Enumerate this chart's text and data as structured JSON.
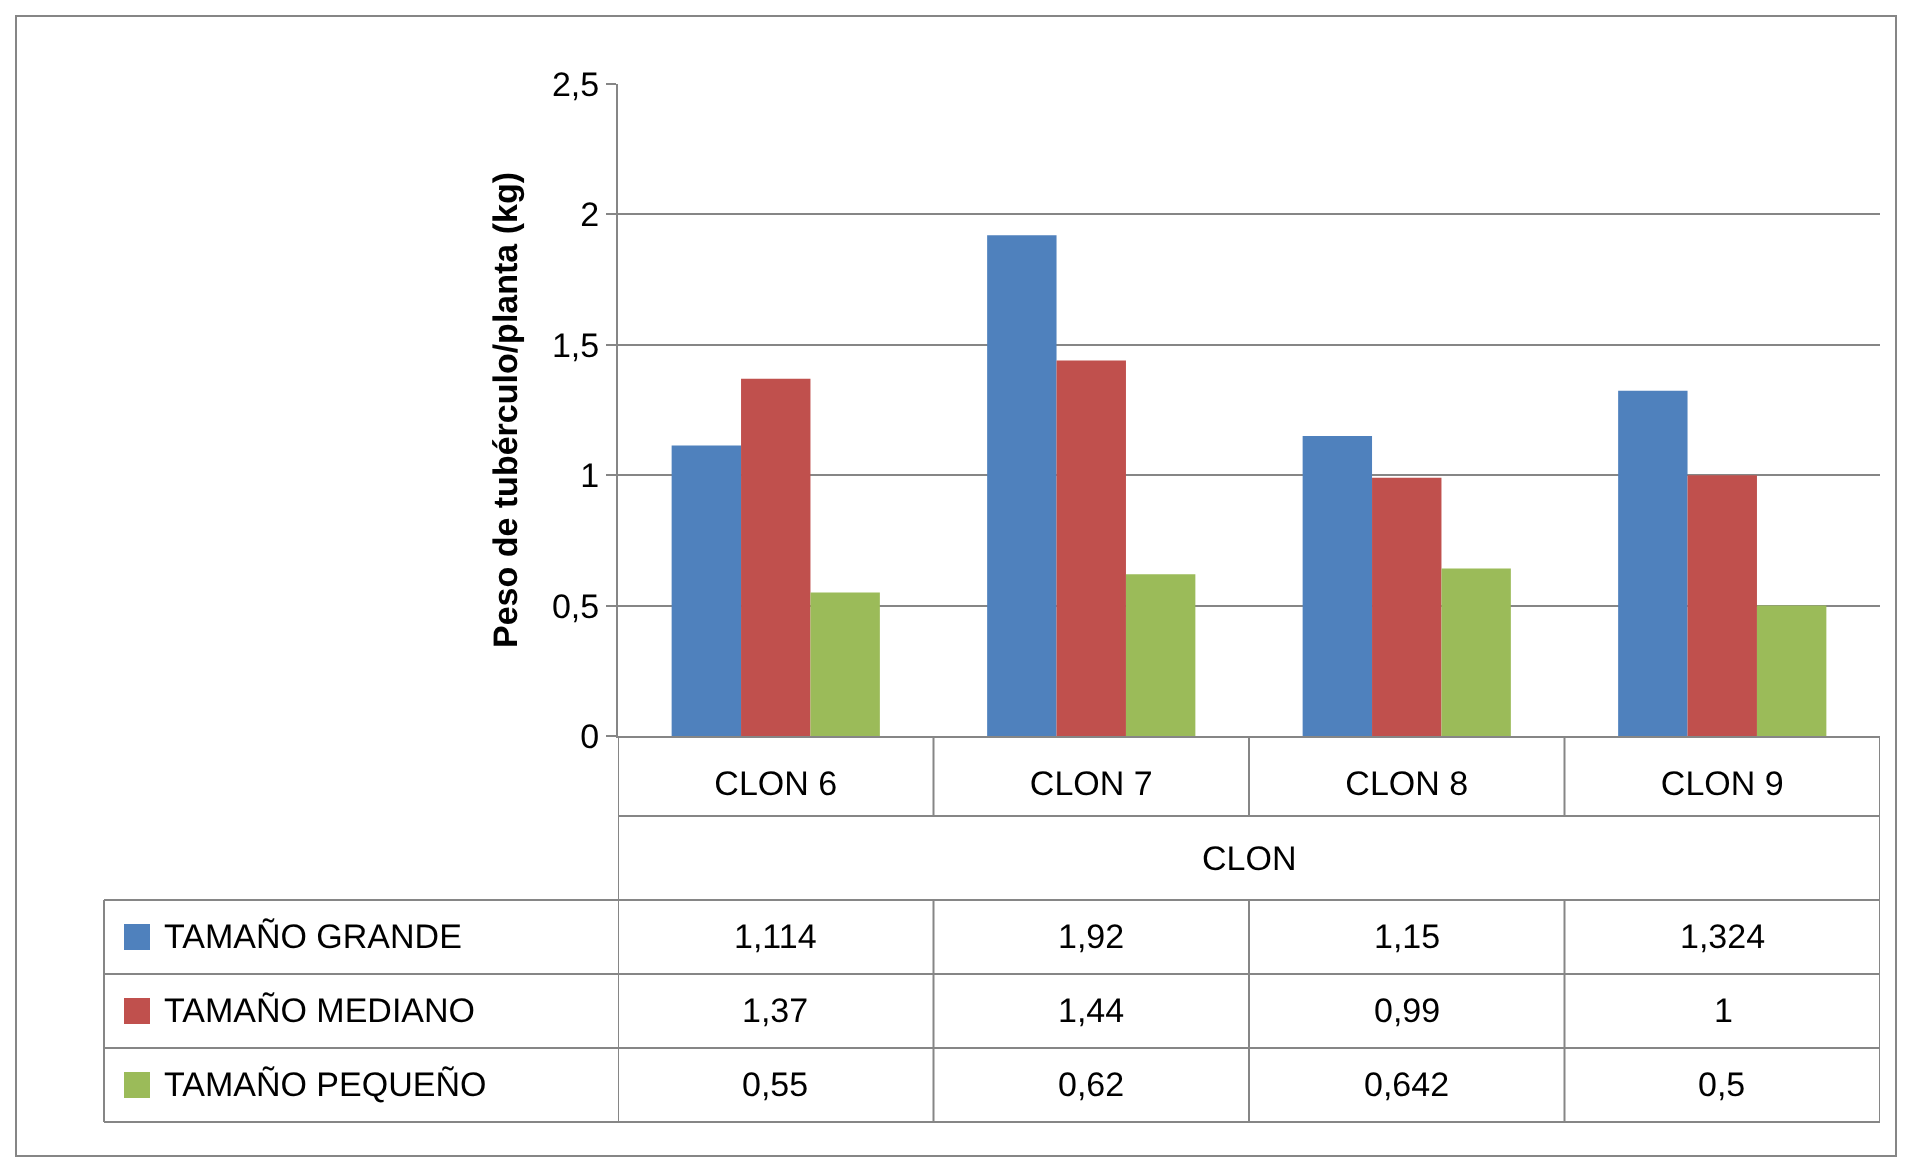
{
  "chart_data": {
    "type": "bar",
    "xlabel": "CLON",
    "ylabel": "Peso de tubérculo/planta (kg)",
    "categories": [
      "CLON 6",
      "CLON 7",
      "CLON 8",
      "CLON 9"
    ],
    "series": [
      {
        "name": "TAMAÑO GRANDE",
        "color": "#4f81bd",
        "values": [
          1.114,
          1.92,
          1.15,
          1.324
        ],
        "value_labels": [
          "1,114",
          "1,92",
          "1,15",
          "1,324"
        ]
      },
      {
        "name": "TAMAÑO MEDIANO",
        "color": "#c0504d",
        "values": [
          1.37,
          1.44,
          0.99,
          1
        ],
        "value_labels": [
          "1,37",
          "1,44",
          "0,99",
          "1"
        ]
      },
      {
        "name": "TAMAÑO PEQUEÑO",
        "color": "#9bbb59",
        "values": [
          0.55,
          0.62,
          0.642,
          0.5
        ],
        "value_labels": [
          "0,55",
          "0,62",
          "0,642",
          "0,5"
        ]
      }
    ],
    "ylim": [
      0,
      2.5
    ],
    "yticks": [
      0,
      {
        "value": 0.5,
        "label": "0,5"
      },
      1,
      {
        "value": 1.5,
        "label": "1,5"
      },
      2,
      {
        "value": 2.5,
        "label": "2,5"
      }
    ],
    "grid": "y",
    "legend": "bottom"
  }
}
